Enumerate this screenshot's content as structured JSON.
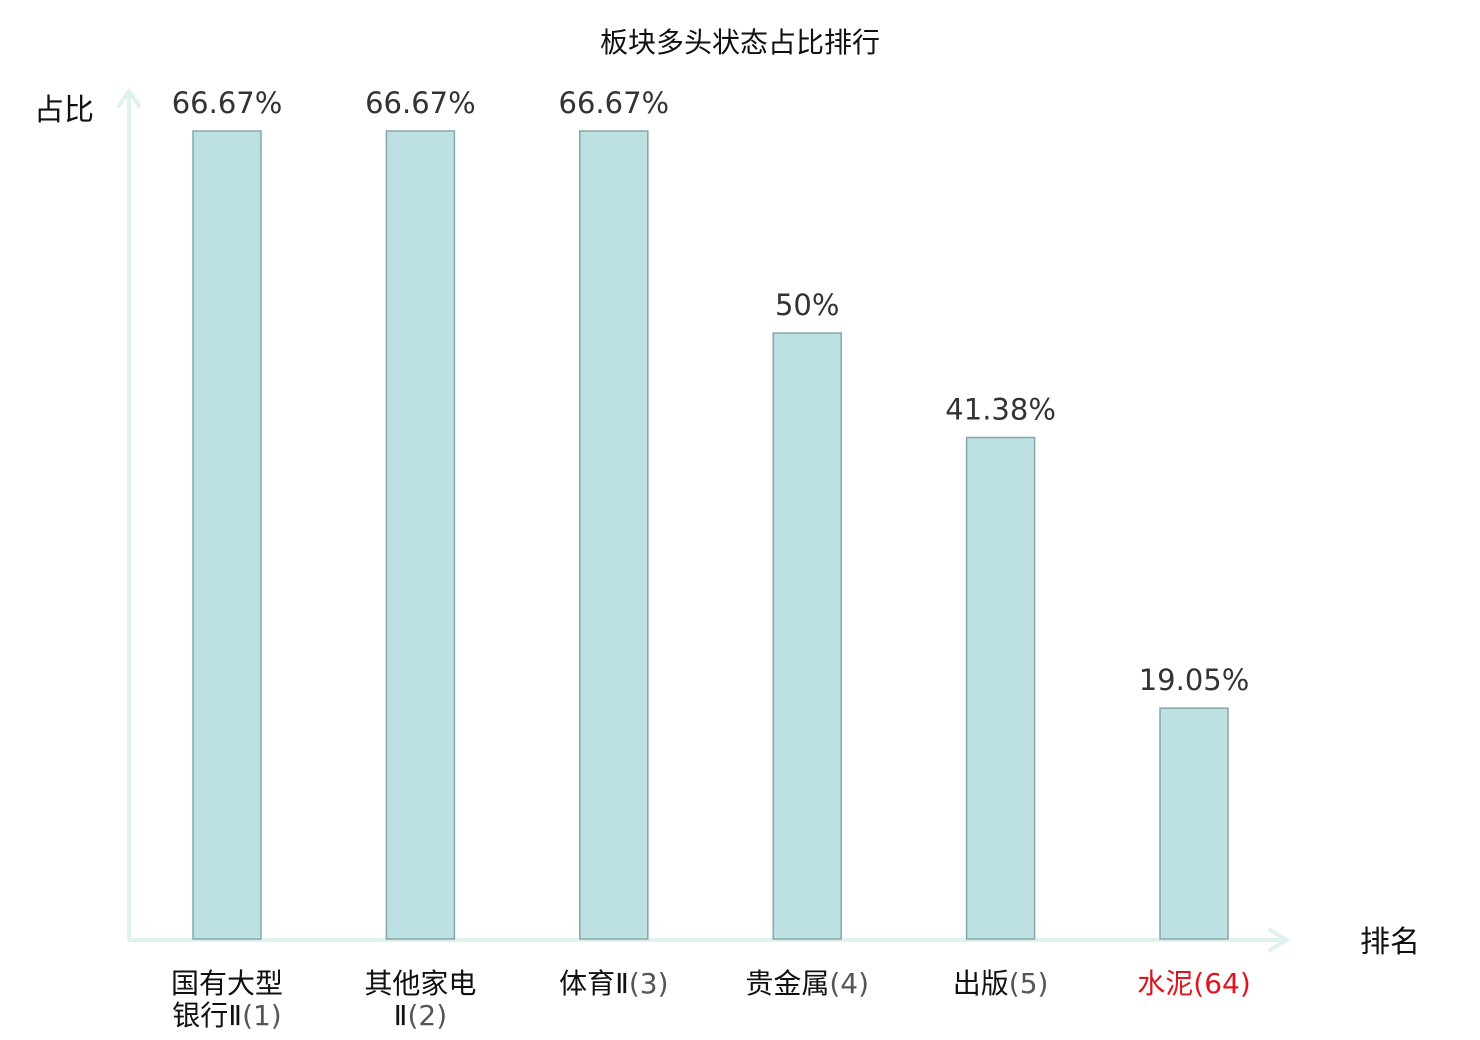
{
  "chart_data": {
    "type": "bar",
    "title": "板块多头状态占比排行",
    "xlabel": "排名",
    "ylabel": "占比",
    "ylim": [
      0,
      66.67
    ],
    "grid": false,
    "legend": "none",
    "categories": [
      {
        "name_lines": [
          "国有大型",
          "银行Ⅱ"
        ],
        "rank": "(1)",
        "highlight": false
      },
      {
        "name_lines": [
          "其他家电",
          "Ⅱ"
        ],
        "rank": "(2)",
        "highlight": false
      },
      {
        "name_lines": [
          "体育Ⅱ"
        ],
        "rank": "(3)",
        "highlight": false
      },
      {
        "name_lines": [
          "贵金属"
        ],
        "rank": "(4)",
        "highlight": false
      },
      {
        "name_lines": [
          "出版"
        ],
        "rank": "(5)",
        "highlight": false
      },
      {
        "name_lines": [
          "水泥"
        ],
        "rank": "(64)",
        "highlight": true
      }
    ],
    "values": [
      66.67,
      66.67,
      66.67,
      50,
      41.38,
      19.05
    ],
    "value_labels": [
      "66.67%",
      "66.67%",
      "66.67%",
      "50%",
      "41.38%",
      "19.05%"
    ]
  },
  "colors": {
    "bar_fill": "#bde0e3",
    "bar_stroke": "#86a7a9",
    "axis": "#dff2ef",
    "label_dark": "#111111",
    "rank_gray": "#555555",
    "highlight": "#e0141e"
  }
}
